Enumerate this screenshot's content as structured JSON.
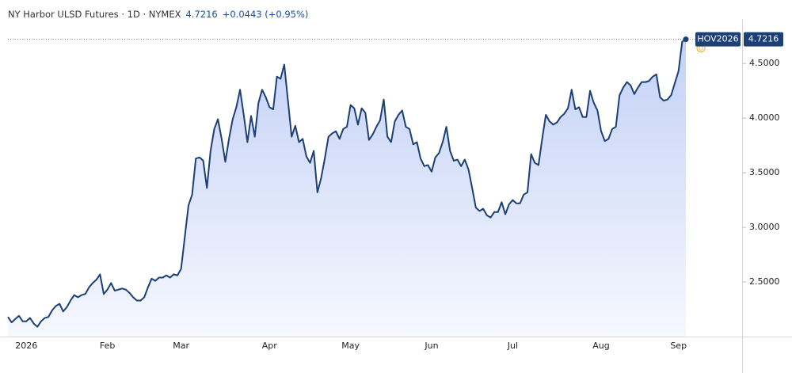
{
  "chart_data": {
    "type": "area",
    "title": "NY Harbor ULSD Futures · 1D · NYMEX",
    "change": "+0.0443 (+0.95%)",
    "event_marker": "D",
    "categories": [
      null,
      null,
      null,
      null,
      null,
      "2026",
      null,
      null,
      null,
      null,
      null,
      null,
      null,
      null,
      null,
      null,
      null,
      null,
      null,
      null,
      null,
      null,
      null,
      null,
      null,
      null,
      null,
      "Feb",
      null,
      null,
      null,
      null,
      null,
      null,
      null,
      null,
      null,
      null,
      null,
      null,
      null,
      null,
      null,
      null,
      null,
      null,
      null,
      "Mar",
      null,
      null,
      null,
      null,
      null,
      null,
      null,
      null,
      null,
      null,
      null,
      null,
      null,
      null,
      null,
      null,
      null,
      null,
      null,
      null,
      null,
      null,
      null,
      "Apr",
      null,
      null,
      null,
      null,
      null,
      null,
      null,
      null,
      null,
      null,
      null,
      null,
      null,
      null,
      null,
      null,
      null,
      null,
      null,
      null,
      null,
      "May",
      null,
      null,
      null,
      null,
      null,
      null,
      null,
      null,
      null,
      null,
      null,
      null,
      null,
      null,
      null,
      null,
      null,
      null,
      null,
      null,
      null,
      "Jun",
      null,
      null,
      null,
      null,
      null,
      null,
      null,
      null,
      null,
      null,
      null,
      null,
      null,
      null,
      null,
      null,
      null,
      null,
      null,
      null,
      null,
      "Jul",
      null,
      null,
      null,
      null,
      null,
      null,
      null,
      null,
      null,
      null,
      null,
      null,
      null,
      null,
      null,
      null,
      null,
      null,
      null,
      null,
      null,
      null,
      null,
      "Aug",
      null,
      null,
      null,
      null,
      null,
      null,
      null,
      null,
      null,
      null,
      null,
      null,
      null,
      null,
      null,
      null,
      null,
      null,
      null,
      null,
      "Sep",
      null,
      null
    ],
    "series": [
      {
        "name": "HOV2026",
        "color": "#1c3f75",
        "values": [
          2.18,
          2.13,
          2.16,
          2.19,
          2.14,
          2.14,
          2.17,
          2.12,
          2.09,
          2.14,
          2.17,
          2.18,
          2.24,
          2.28,
          2.3,
          2.23,
          2.27,
          2.33,
          2.38,
          2.36,
          2.38,
          2.39,
          2.45,
          2.49,
          2.52,
          2.57,
          2.39,
          2.43,
          2.49,
          2.42,
          2.43,
          2.44,
          2.43,
          2.4,
          2.36,
          2.33,
          2.33,
          2.36,
          2.45,
          2.53,
          2.51,
          2.54,
          2.54,
          2.56,
          2.54,
          2.57,
          2.56,
          2.62,
          2.91,
          3.2,
          3.3,
          3.63,
          3.64,
          3.61,
          3.36,
          3.7,
          3.9,
          3.99,
          3.81,
          3.6,
          3.81,
          3.99,
          4.1,
          4.26,
          4.03,
          3.78,
          4.02,
          3.83,
          4.14,
          4.26,
          4.19,
          4.1,
          4.08,
          4.38,
          4.36,
          4.49,
          4.16,
          3.83,
          3.93,
          3.78,
          3.81,
          3.65,
          3.59,
          3.7,
          3.32,
          3.45,
          3.63,
          3.83,
          3.86,
          3.88,
          3.81,
          3.9,
          3.92,
          4.12,
          4.09,
          3.94,
          4.09,
          4.05,
          3.8,
          3.85,
          3.92,
          3.98,
          4.17,
          3.83,
          3.78,
          3.97,
          4.03,
          4.07,
          3.92,
          3.9,
          3.76,
          3.78,
          3.63,
          3.56,
          3.57,
          3.51,
          3.64,
          3.68,
          3.78,
          3.92,
          3.7,
          3.61,
          3.62,
          3.56,
          3.62,
          3.53,
          3.36,
          3.18,
          3.15,
          3.17,
          3.11,
          3.09,
          3.14,
          3.14,
          3.23,
          3.12,
          3.21,
          3.25,
          3.22,
          3.22,
          3.3,
          3.32,
          3.67,
          3.59,
          3.57,
          3.81,
          4.03,
          3.97,
          3.94,
          3.96,
          4.01,
          4.04,
          4.09,
          4.26,
          4.08,
          4.1,
          4.01,
          4.01,
          4.25,
          4.14,
          4.07,
          3.88,
          3.79,
          3.81,
          3.9,
          3.92,
          4.21,
          4.28,
          4.33,
          4.3,
          4.22,
          4.28,
          4.33,
          4.33,
          4.34,
          4.38,
          4.4,
          4.19,
          4.16,
          4.17,
          4.21,
          4.32,
          4.43,
          4.7,
          4.7216
        ]
      }
    ],
    "ylim": [
      2.0,
      4.9
    ],
    "yticks": [
      {
        "value": 2.5,
        "label": "2.5000"
      },
      {
        "value": 3.0,
        "label": "3.0000"
      },
      {
        "value": 3.5,
        "label": "3.5000"
      },
      {
        "value": 4.0,
        "label": "4.0000"
      },
      {
        "value": 4.5,
        "label": "4.5000"
      }
    ],
    "grid": false
  }
}
